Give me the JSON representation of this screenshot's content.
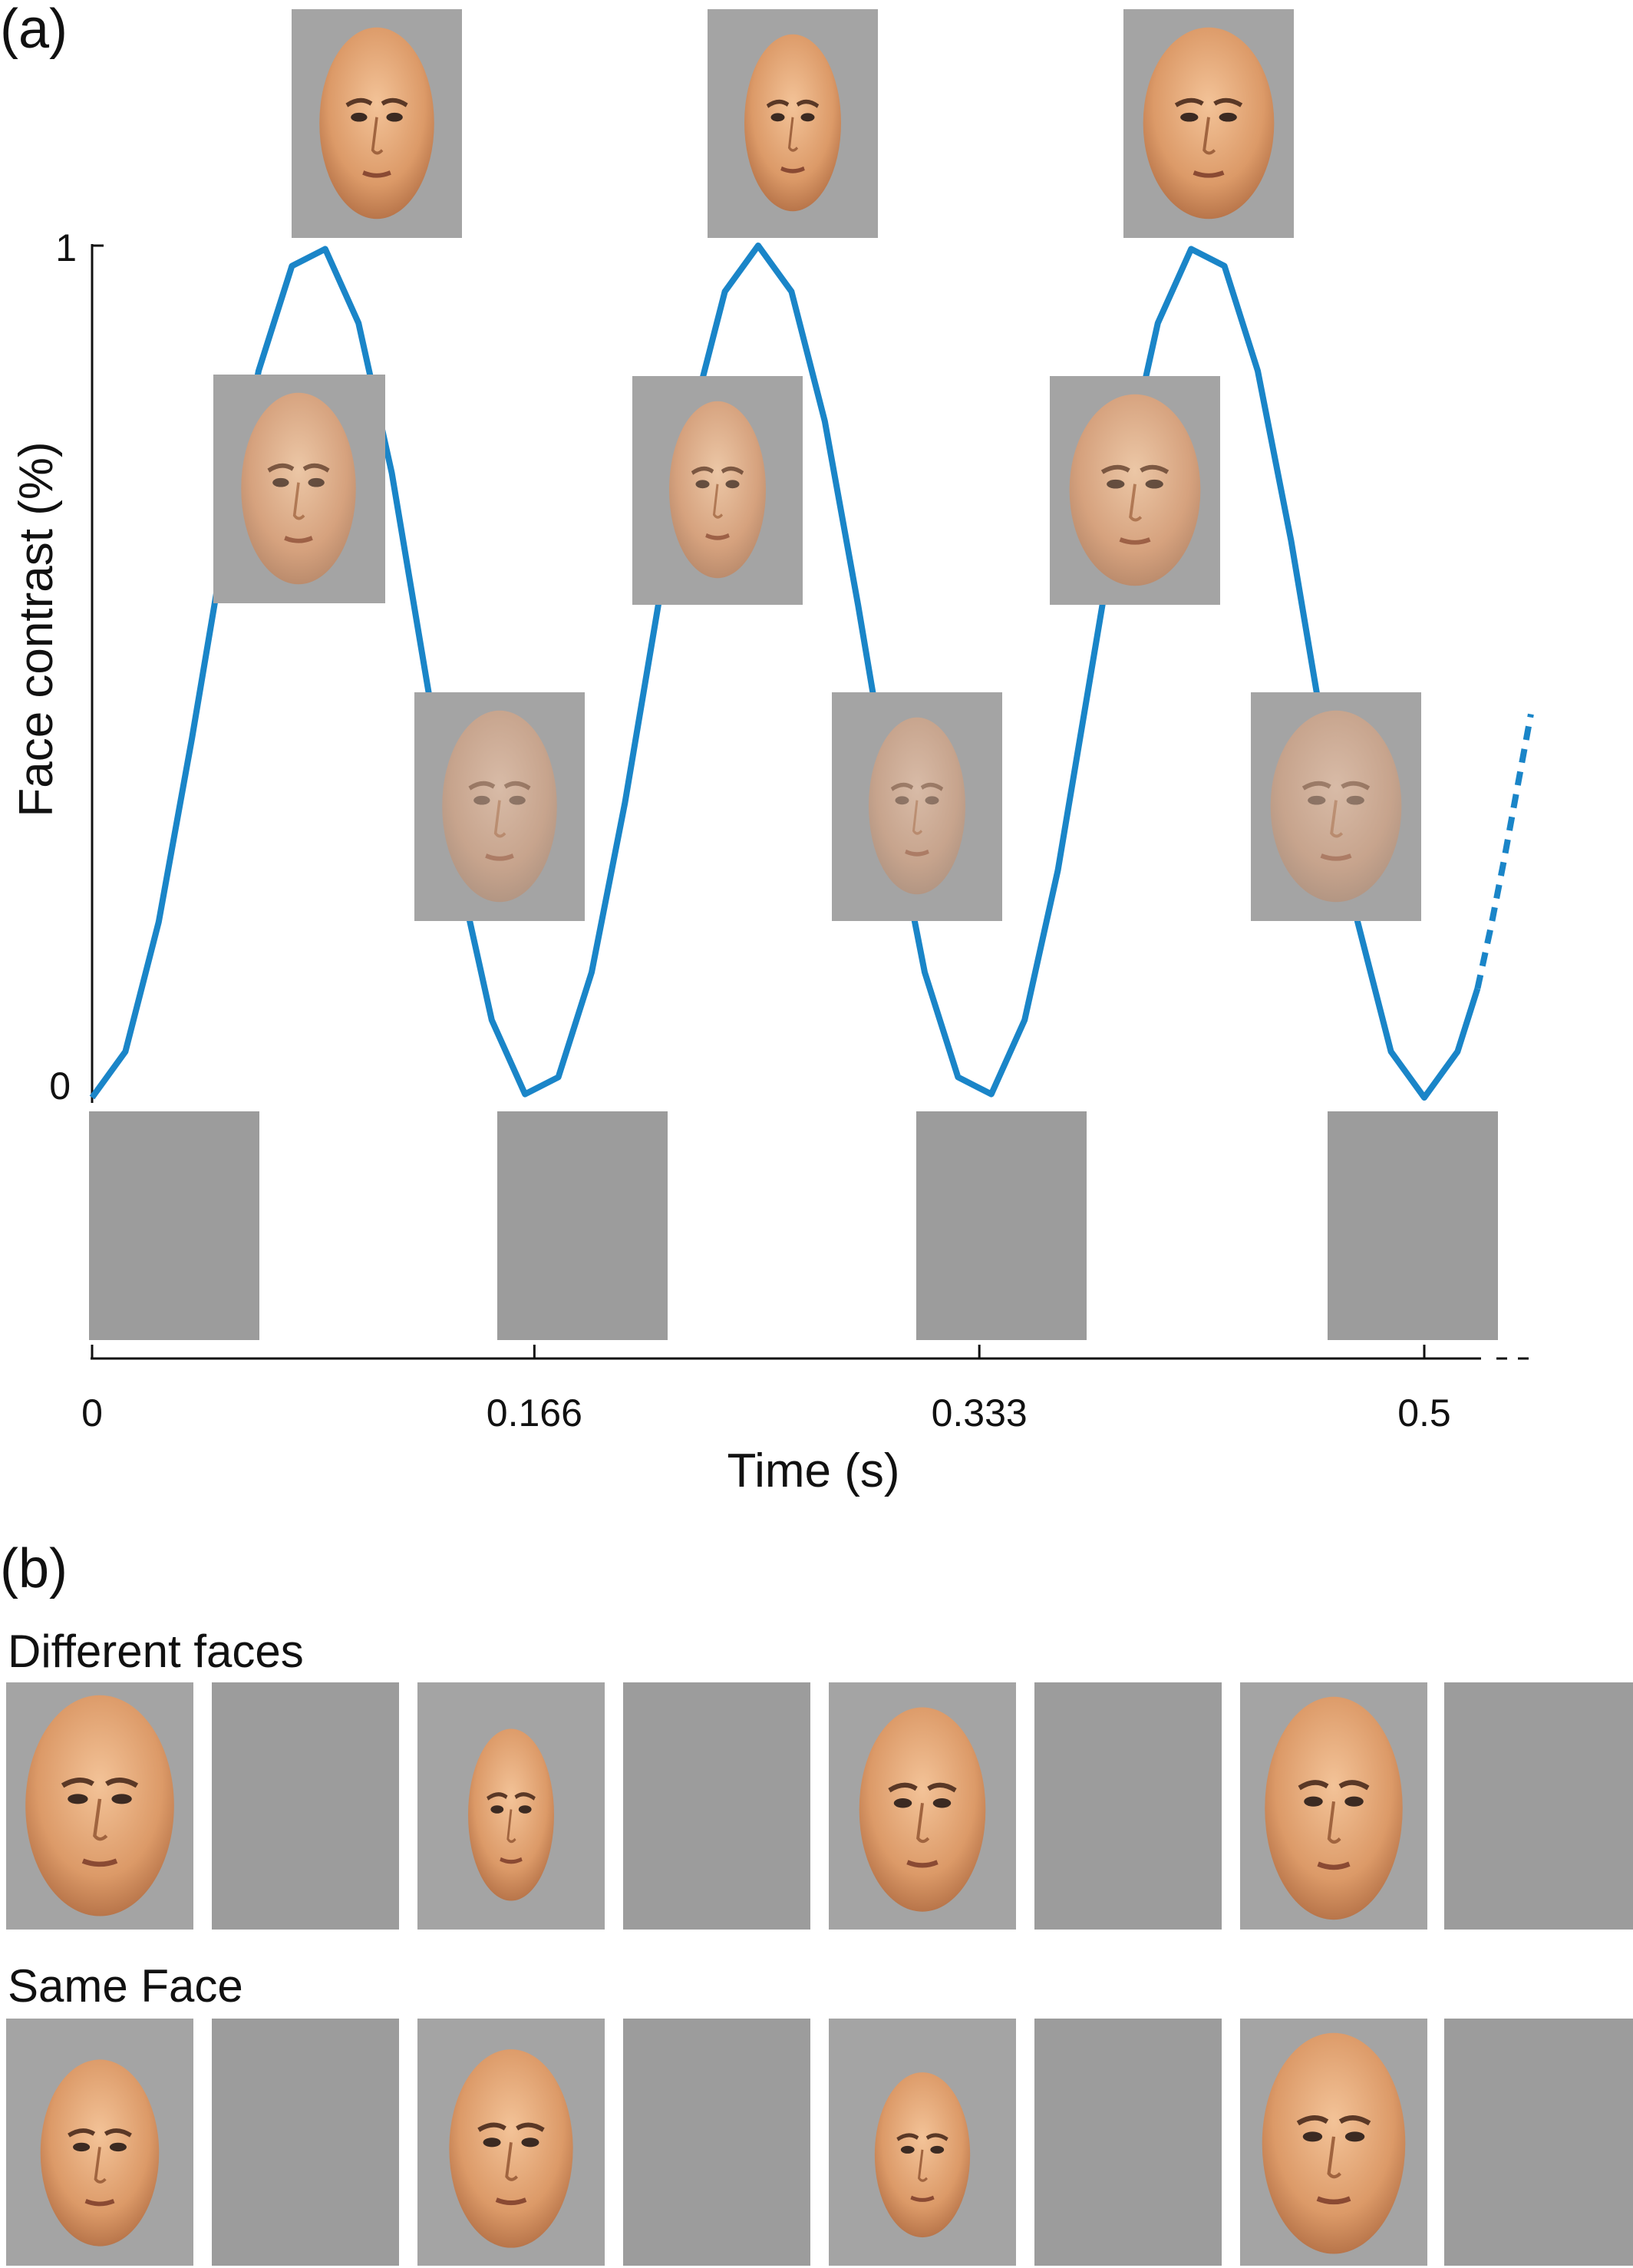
{
  "panel_a": {
    "label": "(a)",
    "ylabel": "Face contrast (%)",
    "xlabel": "Time (s)",
    "yticks": [
      "0",
      "1"
    ],
    "xticks": [
      "0",
      "0.166",
      "0.333",
      "0.5"
    ]
  },
  "panel_b": {
    "label": "(b)",
    "row1_label": "Different faces",
    "row2_label": "Same Face"
  },
  "chart_data": {
    "type": "line",
    "xlabel": "Time (s)",
    "ylabel": "Face contrast (%)",
    "xlim": [
      0,
      0.54
    ],
    "ylim": [
      0,
      1
    ],
    "x_ticks": [
      0,
      0.166,
      0.333,
      0.5
    ],
    "y_ticks": [
      0,
      1
    ],
    "grid": false,
    "series": [
      {
        "x": [
          0,
          0.0125,
          0.025,
          0.0375,
          0.05,
          0.0625,
          0.075,
          0.0875,
          0.1,
          0.1125,
          0.125,
          0.1375,
          0.15,
          0.1625,
          0.175,
          0.1875,
          0.2,
          0.2125,
          0.225,
          0.2375,
          0.25,
          0.2625,
          0.275,
          0.2875,
          0.3,
          0.3125,
          0.325,
          0.3375,
          0.35,
          0.3625,
          0.375,
          0.3875,
          0.4,
          0.4125,
          0.425,
          0.4375,
          0.45,
          0.4625,
          0.475,
          0.4875,
          0.5,
          0.5125,
          0.52
        ],
        "y": [
          0.0,
          0.054,
          0.206,
          0.422,
          0.654,
          0.853,
          0.976,
          0.996,
          0.909,
          0.733,
          0.5,
          0.267,
          0.091,
          0.004,
          0.024,
          0.147,
          0.346,
          0.578,
          0.794,
          0.946,
          1.0,
          0.946,
          0.794,
          0.578,
          0.346,
          0.147,
          0.024,
          0.004,
          0.091,
          0.267,
          0.5,
          0.733,
          0.909,
          0.996,
          0.976,
          0.853,
          0.654,
          0.422,
          0.206,
          0.054,
          0.0,
          0.054,
          0.128
        ],
        "color": "#1a85c8"
      },
      {
        "x": [
          0.52,
          0.525,
          0.53,
          0.535,
          0.54
        ],
        "y": [
          0.128,
          0.2,
          0.28,
          0.365,
          0.45
        ],
        "color": "#1a85c8",
        "style": "dashed"
      }
    ]
  },
  "colors": {
    "curve": "#1a85c8",
    "blank_gray": "#9c9c9c",
    "face_bg_gray": "#a4a4a4",
    "skin_full": "#e0a070",
    "skin_mid": "#d9a47f",
    "skin_low": "#c9a48d"
  }
}
